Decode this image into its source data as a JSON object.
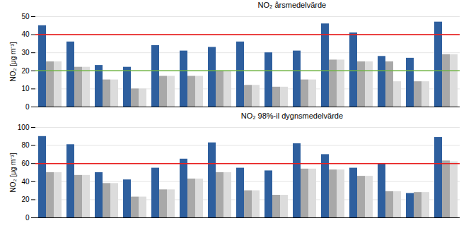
{
  "chart_data": [
    {
      "type": "bar",
      "title": "NO₂ årsmedelvärde",
      "ylabel": "NO₂ [μg m⁻³]",
      "categories": [
        null,
        null,
        null,
        null,
        null,
        null,
        null,
        null,
        null,
        null,
        null,
        null,
        null,
        null,
        null
      ],
      "series": [
        {
          "color": "#2e5f9e",
          "values": [
            45,
            36,
            23,
            22,
            34,
            31,
            33,
            36,
            30,
            31,
            46,
            41,
            28,
            27,
            47
          ]
        },
        {
          "color": "#a8a8a8",
          "values": [
            25,
            22,
            15,
            10,
            17,
            17,
            20,
            12,
            11,
            15,
            26,
            25,
            25,
            14,
            29
          ]
        },
        {
          "color": "#dcdcdc",
          "values": [
            25,
            22,
            15,
            10,
            17,
            17,
            20,
            12,
            11,
            15,
            26,
            25,
            14,
            14,
            29
          ]
        }
      ],
      "hlines": [
        {
          "value": 40,
          "color": "#e82020"
        },
        {
          "value": 20,
          "color": "#6db33f"
        }
      ],
      "ylim": [
        0,
        50
      ],
      "yticks": [
        0,
        10,
        20,
        30,
        40,
        50
      ],
      "grid": true,
      "tick_labels": "y"
    },
    {
      "type": "bar",
      "title": "NO₂ 98%-il dygnsmedelvärde",
      "ylabel": "NO₂ [μg m⁻³]",
      "categories": [
        null,
        null,
        null,
        null,
        null,
        null,
        null,
        null,
        null,
        null,
        null,
        null,
        null,
        null,
        null
      ],
      "series": [
        {
          "color": "#2e5f9e",
          "values": [
            90,
            81,
            50,
            42,
            55,
            65,
            83,
            55,
            52,
            82,
            70,
            55,
            60,
            27,
            89
          ]
        },
        {
          "color": "#a8a8a8",
          "values": [
            50,
            47,
            38,
            23,
            31,
            43,
            50,
            30,
            25,
            54,
            53,
            46,
            29,
            28,
            63
          ]
        },
        {
          "color": "#dcdcdc",
          "values": [
            50,
            47,
            38,
            23,
            31,
            43,
            50,
            30,
            25,
            54,
            53,
            46,
            29,
            28,
            62
          ]
        }
      ],
      "hlines": [
        {
          "value": 60,
          "color": "#e82020"
        }
      ],
      "ylim": [
        0,
        100
      ],
      "yticks": [
        0,
        20,
        40,
        60,
        80,
        100
      ],
      "grid": true,
      "tick_labels": "y"
    }
  ]
}
